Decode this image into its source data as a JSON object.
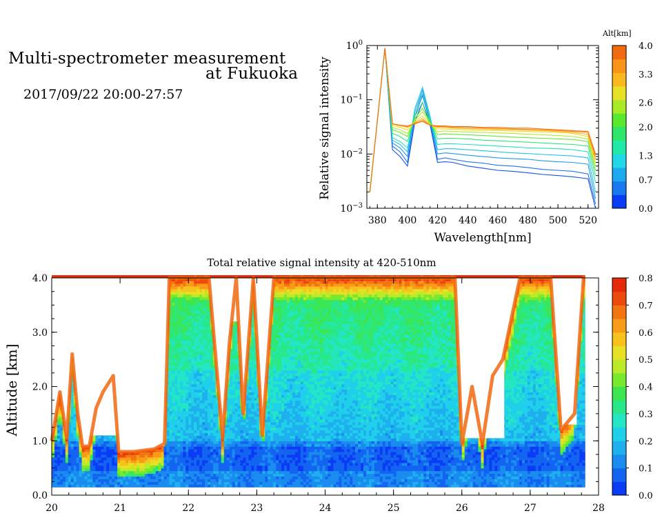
{
  "header": {
    "title_line1": "Multi-spectrometer measurement",
    "title_line2": "at Fukuoka",
    "datetime": "2017/09/22 20:00-27:57"
  },
  "chart_data": [
    {
      "type": "line",
      "title": "",
      "xlabel": "Wavelength[nm]",
      "ylabel": "Relative signal intensity",
      "xlim": [
        373,
        527
      ],
      "ylim": [
        0.001,
        1
      ],
      "yscale": "log",
      "x_ticks": [
        "380",
        "400",
        "420",
        "440",
        "460",
        "480",
        "500",
        "520"
      ],
      "y_ticks": [
        "10^-3",
        "10^-2",
        "10^-1",
        "10^0"
      ],
      "colorbar": {
        "title": "Alt[km]",
        "ticks": [
          "0.0",
          "0.7",
          "1.3",
          "2.0",
          "2.6",
          "3.3",
          "4.0"
        ],
        "min": 0.0,
        "max": 4.0,
        "colors": [
          "#0a3cf5",
          "#1a78f0",
          "#1ea8ee",
          "#20d8e8",
          "#22e8a8",
          "#2ee66a",
          "#58e830",
          "#a8ea28",
          "#e8e024",
          "#f8b81e",
          "#f89418",
          "#f06a10"
        ]
      },
      "x": [
        375,
        385,
        390,
        395,
        400,
        405,
        410,
        415,
        420,
        425,
        430,
        440,
        450,
        460,
        470,
        480,
        490,
        500,
        510,
        520,
        525
      ],
      "series": [
        {
          "altitude": 0.2,
          "color": "#1450e8",
          "values": [
            0.002,
            0.9,
            0.012,
            0.009,
            0.006,
            0.04,
            0.09,
            0.035,
            0.007,
            0.0072,
            0.007,
            0.006,
            0.0055,
            0.005,
            0.0048,
            0.0045,
            0.0042,
            0.004,
            0.0038,
            0.0035,
            0.001
          ]
        },
        {
          "altitude": 0.5,
          "color": "#1a70f0",
          "values": [
            0.002,
            0.9,
            0.014,
            0.011,
            0.007,
            0.05,
            0.12,
            0.04,
            0.008,
            0.0085,
            0.008,
            0.0072,
            0.0068,
            0.0062,
            0.006,
            0.0056,
            0.0052,
            0.005,
            0.0048,
            0.0043,
            0.0012
          ]
        },
        {
          "altitude": 0.8,
          "color": "#1e98ee",
          "values": [
            0.002,
            0.9,
            0.016,
            0.013,
            0.009,
            0.06,
            0.15,
            0.045,
            0.01,
            0.0105,
            0.0102,
            0.0095,
            0.009,
            0.0085,
            0.0082,
            0.008,
            0.0075,
            0.0072,
            0.007,
            0.0065,
            0.0015
          ]
        },
        {
          "altitude": 1.1,
          "color": "#20c4ea",
          "values": [
            0.002,
            0.9,
            0.018,
            0.015,
            0.011,
            0.07,
            0.17,
            0.05,
            0.012,
            0.0125,
            0.0125,
            0.012,
            0.0115,
            0.011,
            0.0105,
            0.0102,
            0.0098,
            0.0095,
            0.0092,
            0.0085,
            0.002
          ]
        },
        {
          "altitude": 1.4,
          "color": "#22e0c0",
          "values": [
            0.002,
            0.9,
            0.02,
            0.017,
            0.013,
            0.06,
            0.13,
            0.045,
            0.015,
            0.0155,
            0.0155,
            0.015,
            0.0145,
            0.014,
            0.0135,
            0.013,
            0.0128,
            0.0125,
            0.012,
            0.011,
            0.003
          ]
        },
        {
          "altitude": 1.8,
          "color": "#2ee67a",
          "values": [
            0.002,
            0.9,
            0.024,
            0.021,
            0.017,
            0.05,
            0.09,
            0.04,
            0.019,
            0.0195,
            0.0195,
            0.019,
            0.018,
            0.0175,
            0.017,
            0.0165,
            0.016,
            0.0155,
            0.015,
            0.014,
            0.004
          ]
        },
        {
          "altitude": 2.2,
          "color": "#64e830",
          "values": [
            0.002,
            0.9,
            0.028,
            0.025,
            0.021,
            0.045,
            0.07,
            0.038,
            0.023,
            0.0235,
            0.0232,
            0.0225,
            0.022,
            0.0212,
            0.0205,
            0.02,
            0.0195,
            0.019,
            0.0185,
            0.017,
            0.005
          ]
        },
        {
          "altitude": 2.6,
          "color": "#b4ea28",
          "values": [
            0.002,
            0.9,
            0.031,
            0.028,
            0.024,
            0.042,
            0.06,
            0.036,
            0.026,
            0.0265,
            0.026,
            0.0255,
            0.025,
            0.0245,
            0.024,
            0.0232,
            0.0225,
            0.022,
            0.021,
            0.019,
            0.006
          ]
        },
        {
          "altitude": 3.0,
          "color": "#ecd824",
          "values": [
            0.002,
            0.9,
            0.034,
            0.031,
            0.028,
            0.04,
            0.05,
            0.035,
            0.029,
            0.029,
            0.0285,
            0.028,
            0.0275,
            0.027,
            0.0265,
            0.026,
            0.0255,
            0.025,
            0.024,
            0.021,
            0.007
          ]
        },
        {
          "altitude": 3.4,
          "color": "#f8b01e",
          "values": [
            0.002,
            0.9,
            0.036,
            0.033,
            0.031,
            0.038,
            0.045,
            0.034,
            0.031,
            0.031,
            0.03,
            0.0295,
            0.029,
            0.0285,
            0.028,
            0.0275,
            0.027,
            0.026,
            0.025,
            0.023,
            0.008
          ]
        },
        {
          "altitude": 3.7,
          "color": "#f69018",
          "values": [
            0.002,
            0.9,
            0.036,
            0.034,
            0.032,
            0.037,
            0.042,
            0.034,
            0.032,
            0.032,
            0.031,
            0.031,
            0.03,
            0.0295,
            0.029,
            0.0285,
            0.028,
            0.027,
            0.026,
            0.025,
            0.009
          ]
        },
        {
          "altitude": 4.0,
          "color": "#f07010",
          "values": [
            0.002,
            0.9,
            0.036,
            0.034,
            0.033,
            0.036,
            0.04,
            0.034,
            0.033,
            0.033,
            0.032,
            0.032,
            0.031,
            0.031,
            0.03,
            0.03,
            0.029,
            0.028,
            0.027,
            0.026,
            0.01
          ]
        }
      ]
    },
    {
      "type": "heatmap",
      "title": "Total relative signal intensity at 420-510nm",
      "xlabel": "",
      "ylabel": "Altitude [km]",
      "xlim": [
        20,
        28
      ],
      "ylim": [
        0.0,
        4.0
      ],
      "x_ticks": [
        "20",
        "21",
        "22",
        "23",
        "24",
        "25",
        "26",
        "27",
        "28"
      ],
      "y_ticks": [
        "0.0",
        "1.0",
        "2.0",
        "3.0",
        "4.0"
      ],
      "data_x_range": [
        20.0,
        27.78
      ],
      "data_y_range": [
        0.15,
        4.0
      ],
      "colorbar": {
        "ticks": [
          "0.0",
          "0.1",
          "0.2",
          "0.3",
          "0.4",
          "0.5",
          "0.6",
          "0.7",
          "0.8"
        ],
        "min": 0.0,
        "max": 0.8,
        "colors": [
          "#0a3cf5",
          "#1464f2",
          "#1a8cf0",
          "#1eb0ee",
          "#20d0ea",
          "#22e6c4",
          "#28e88a",
          "#3ce650",
          "#7ae82c",
          "#bcea28",
          "#e8e024",
          "#f8c21e",
          "#f89c18",
          "#f47412",
          "#ec4a0c",
          "#e42a08"
        ]
      },
      "clear_sky_top_km": [
        {
          "t": 20.0,
          "h": 1.0
        },
        {
          "t": 20.12,
          "h": 1.9
        },
        {
          "t": 20.22,
          "h": 1.05
        },
        {
          "t": 20.3,
          "h": 2.6
        },
        {
          "t": 20.38,
          "h": 1.5
        },
        {
          "t": 20.45,
          "h": 0.9
        },
        {
          "t": 20.55,
          "h": 0.9
        },
        {
          "t": 20.65,
          "h": 1.6
        },
        {
          "t": 20.75,
          "h": 1.9
        },
        {
          "t": 20.9,
          "h": 2.2
        },
        {
          "t": 20.98,
          "h": 0.8
        },
        {
          "t": 21.2,
          "h": 0.8
        },
        {
          "t": 21.5,
          "h": 0.85
        },
        {
          "t": 21.65,
          "h": 0.95
        },
        {
          "t": 21.72,
          "h": 4.0
        },
        {
          "t": 22.3,
          "h": 4.0
        },
        {
          "t": 22.5,
          "h": 1.05
        },
        {
          "t": 22.6,
          "h": 2.8
        },
        {
          "t": 22.7,
          "h": 4.0
        },
        {
          "t": 22.8,
          "h": 1.5
        },
        {
          "t": 22.95,
          "h": 4.0
        },
        {
          "t": 23.08,
          "h": 1.1
        },
        {
          "t": 23.25,
          "h": 4.0
        },
        {
          "t": 25.9,
          "h": 4.0
        },
        {
          "t": 26.0,
          "h": 0.95
        },
        {
          "t": 26.15,
          "h": 2.0
        },
        {
          "t": 26.3,
          "h": 0.95
        },
        {
          "t": 26.45,
          "h": 2.2
        },
        {
          "t": 26.6,
          "h": 2.5
        },
        {
          "t": 26.85,
          "h": 4.0
        },
        {
          "t": 27.3,
          "h": 4.0
        },
        {
          "t": 27.45,
          "h": 1.2
        },
        {
          "t": 27.65,
          "h": 1.5
        },
        {
          "t": 27.78,
          "h": 4.0
        }
      ],
      "white_gaps_km": [
        {
          "t0": 20.3,
          "t1": 20.45,
          "top": 4.0,
          "bottom": 2.7
        },
        {
          "t0": 20.45,
          "t1": 20.98,
          "top": 4.0,
          "bottom": 2.25
        },
        {
          "t0": 20.98,
          "t1": 21.65,
          "top": 4.0,
          "bottom": 0.9
        },
        {
          "t0": 20.5,
          "t1": 20.95,
          "top": 3.0,
          "bottom": 1.1
        },
        {
          "t0": 22.58,
          "t1": 22.74,
          "top": 4.0,
          "bottom": 3.2
        },
        {
          "t0": 26.0,
          "t1": 26.62,
          "top": 4.0,
          "bottom": 1.05
        },
        {
          "t0": 27.45,
          "t1": 27.68,
          "top": 4.0,
          "bottom": 1.3
        }
      ]
    }
  ]
}
